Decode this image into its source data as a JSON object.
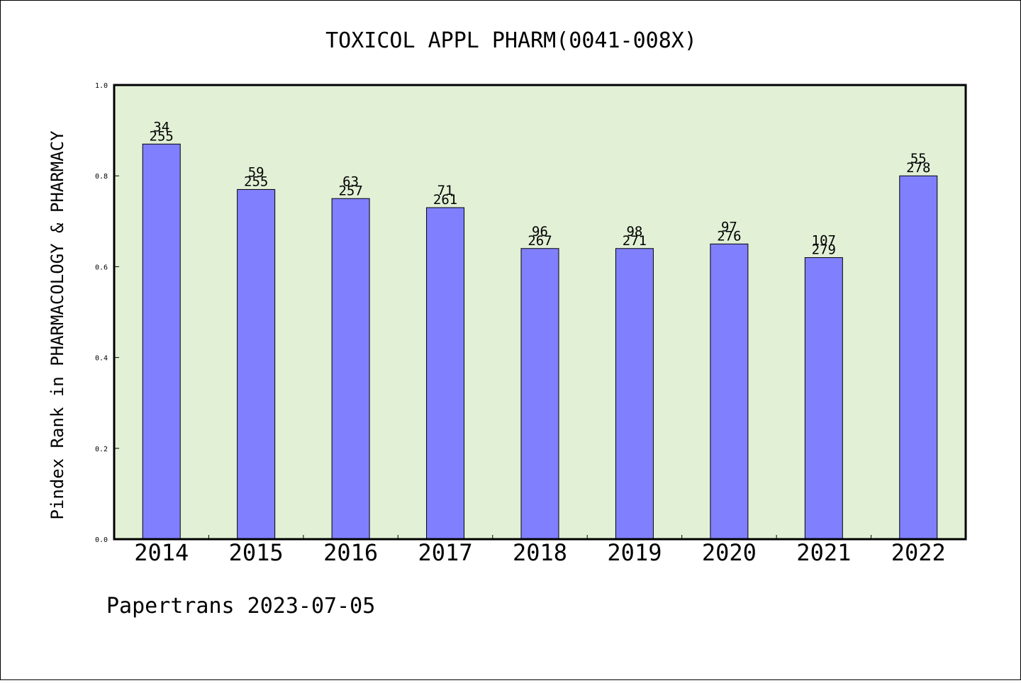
{
  "chart_data": {
    "type": "bar",
    "title": "TOXICOL APPL PHARM(0041-008X)",
    "xlabel": "",
    "ylabel": "Pindex Rank in PHARMACOLOGY & PHARMACY",
    "ylim": [
      0.0,
      1.0
    ],
    "yticks": [
      "0.0",
      "0.2",
      "0.4",
      "0.6",
      "0.8",
      "1.0"
    ],
    "categories": [
      "2014",
      "2015",
      "2016",
      "2017",
      "2018",
      "2019",
      "2020",
      "2021",
      "2022"
    ],
    "values": [
      0.87,
      0.77,
      0.75,
      0.73,
      0.64,
      0.64,
      0.65,
      0.62,
      0.8
    ],
    "ranks": [
      "34",
      "59",
      "63",
      "71",
      "96",
      "98",
      "97",
      "107",
      "55"
    ],
    "totals": [
      "255",
      "255",
      "257",
      "261",
      "267",
      "271",
      "276",
      "279",
      "278"
    ],
    "grid": false,
    "legend": "none",
    "colors": {
      "plot_background": "#e2f0d6",
      "bar_fill": "#8080ff",
      "bar_stroke": "#000000"
    }
  },
  "footer": {
    "credit": "Papertrans 2023-07-05"
  }
}
